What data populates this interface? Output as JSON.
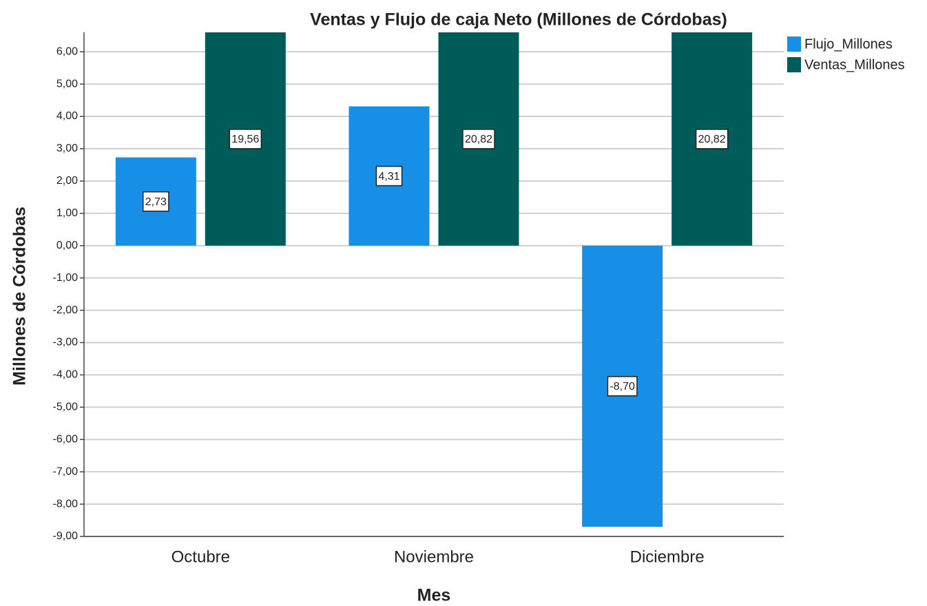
{
  "chart_data": {
    "type": "bar",
    "title": "Ventas y Flujo de caja Neto (Millones de Córdobas)",
    "x_label": "Mes",
    "y_label": "Millones de Córdobas",
    "categories": [
      "Octubre",
      "Noviembre",
      "Diciembre"
    ],
    "series": [
      {
        "name": "Flujo_Millones",
        "color": "#1690e6",
        "values": [
          2.73,
          4.31,
          -8.7
        ],
        "value_labels": [
          "2,73",
          "4,31",
          "-8,70"
        ]
      },
      {
        "name": "Ventas_Millones",
        "color": "#005c58",
        "values": [
          19.56,
          20.82,
          20.82
        ],
        "value_labels": [
          "19,56",
          "20,82",
          "20,82"
        ]
      }
    ],
    "ylim": [
      -9,
      6.6
    ],
    "yticks": [
      {
        "value": -9,
        "label": "-9,00"
      },
      {
        "value": -8,
        "label": "-8,00"
      },
      {
        "value": -7,
        "label": "-7,00"
      },
      {
        "value": -6,
        "label": "-6,00"
      },
      {
        "value": -5,
        "label": "-5,00"
      },
      {
        "value": -4,
        "label": "-4,00"
      },
      {
        "value": -3,
        "label": "-3,00"
      },
      {
        "value": -2,
        "label": "-2,00"
      },
      {
        "value": -1,
        "label": "-1,00"
      },
      {
        "value": 0,
        "label": "0,00"
      },
      {
        "value": 1,
        "label": "1,00"
      },
      {
        "value": 2,
        "label": "2,00"
      },
      {
        "value": 3,
        "label": "3,00"
      },
      {
        "value": 4,
        "label": "4,00"
      },
      {
        "value": 5,
        "label": "5,00"
      },
      {
        "value": 6,
        "label": "6,00"
      }
    ],
    "grid": true,
    "legend": "right"
  }
}
